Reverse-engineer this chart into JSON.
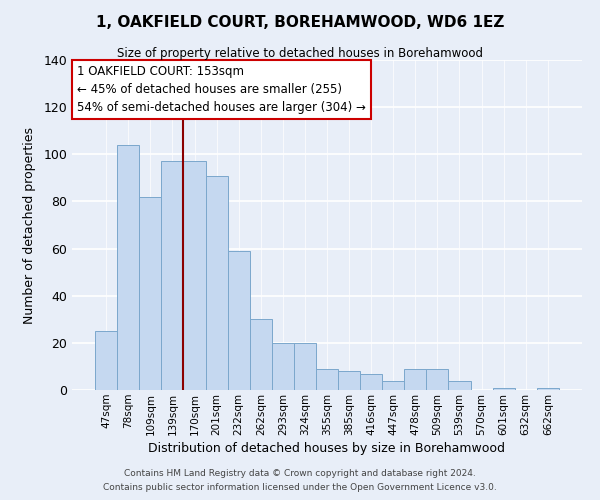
{
  "title": "1, OAKFIELD COURT, BOREHAMWOOD, WD6 1EZ",
  "subtitle": "Size of property relative to detached houses in Borehamwood",
  "xlabel": "Distribution of detached houses by size in Borehamwood",
  "ylabel": "Number of detached properties",
  "bar_labels": [
    "47sqm",
    "78sqm",
    "109sqm",
    "139sqm",
    "170sqm",
    "201sqm",
    "232sqm",
    "262sqm",
    "293sqm",
    "324sqm",
    "355sqm",
    "385sqm",
    "416sqm",
    "447sqm",
    "478sqm",
    "509sqm",
    "539sqm",
    "570sqm",
    "601sqm",
    "632sqm",
    "662sqm"
  ],
  "bar_values": [
    25,
    104,
    82,
    97,
    97,
    91,
    59,
    30,
    20,
    20,
    9,
    8,
    7,
    4,
    9,
    9,
    4,
    0,
    1,
    0,
    1
  ],
  "bar_color": "#c5d8f0",
  "bar_edge_color": "#7ba7cc",
  "vline_x": 3.5,
  "vline_color": "#8b0000",
  "ylim": [
    0,
    140
  ],
  "yticks": [
    0,
    20,
    40,
    60,
    80,
    100,
    120,
    140
  ],
  "annotation_title": "1 OAKFIELD COURT: 153sqm",
  "annotation_line1": "← 45% of detached houses are smaller (255)",
  "annotation_line2": "54% of semi-detached houses are larger (304) →",
  "annotation_box_color": "#ffffff",
  "annotation_box_edge": "#cc0000",
  "footer1": "Contains HM Land Registry data © Crown copyright and database right 2024.",
  "footer2": "Contains public sector information licensed under the Open Government Licence v3.0.",
  "bg_color": "#e8eef8",
  "plot_bg_color": "#e8eef8"
}
